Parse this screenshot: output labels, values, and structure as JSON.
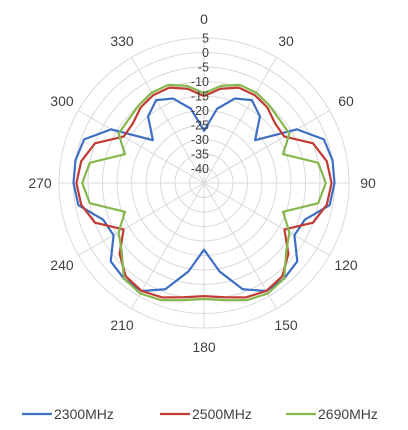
{
  "chart_data": {
    "type": "radar",
    "title": "",
    "angle_labels": [
      "0",
      "30",
      "60",
      "90",
      "120",
      "150",
      "180",
      "210",
      "240",
      "270",
      "300",
      "330"
    ],
    "radial_ticks": [
      "5",
      "0",
      "-5",
      "-10",
      "-15",
      "-20",
      "-25",
      "-30",
      "-35",
      "-40"
    ],
    "r_range": [
      -45,
      5
    ],
    "grid": true,
    "legend_position": "bottom",
    "series": [
      {
        "name": "2300MHz",
        "color": "#3f6fc4",
        "angles": [
          0,
          10,
          20,
          30,
          40,
          50,
          60,
          70,
          80,
          90,
          100,
          110,
          120,
          130,
          140,
          150,
          160,
          170,
          180,
          190,
          200,
          210,
          220,
          230,
          240,
          250,
          260,
          270,
          280,
          290,
          300,
          310,
          320,
          330,
          340,
          350
        ],
        "values": [
          -27,
          -19,
          -14,
          -12,
          -15,
          -22,
          -8,
          -1,
          0,
          0,
          -1,
          -8,
          -9,
          -3,
          -2,
          -2,
          -6,
          -14,
          -22,
          -14,
          -6,
          -2,
          -2,
          -3,
          -9,
          -8,
          -1,
          0,
          0,
          -1,
          -8,
          -22,
          -15,
          -12,
          -14,
          -19
        ]
      },
      {
        "name": "2500MHz",
        "color": "#c23b32",
        "angles": [
          0,
          10,
          20,
          30,
          40,
          50,
          60,
          70,
          80,
          90,
          100,
          110,
          120,
          130,
          140,
          150,
          160,
          170,
          180,
          190,
          200,
          210,
          220,
          230,
          240,
          250,
          260,
          270,
          280,
          290,
          300,
          310,
          320,
          330,
          340,
          350
        ],
        "values": [
          -15,
          -12,
          -10,
          -10,
          -11,
          -13,
          -13,
          -5,
          -2,
          -1,
          -2,
          -5,
          -13,
          -7,
          -3,
          -2,
          -3,
          -5,
          -6,
          -5,
          -3,
          -2,
          -3,
          -7,
          -13,
          -5,
          -2,
          -1,
          -2,
          -5,
          -13,
          -13,
          -11,
          -10,
          -10,
          -12
        ]
      },
      {
        "name": "2690MHz",
        "color": "#86b74c",
        "angles": [
          0,
          10,
          20,
          30,
          40,
          50,
          60,
          70,
          80,
          90,
          100,
          110,
          120,
          130,
          140,
          150,
          160,
          170,
          180,
          190,
          200,
          210,
          220,
          230,
          240,
          250,
          260,
          270,
          280,
          290,
          300,
          310,
          320,
          330,
          340,
          350
        ],
        "values": [
          -14,
          -11,
          -9,
          -9,
          -10,
          -11,
          -11,
          -16,
          -5,
          -3,
          -5,
          -16,
          -11,
          -8,
          -2,
          -1,
          -2,
          -4,
          -5,
          -4,
          -2,
          -1,
          -2,
          -8,
          -11,
          -16,
          -5,
          -3,
          -5,
          -16,
          -11,
          -11,
          -10,
          -9,
          -9,
          -11
        ]
      }
    ]
  }
}
